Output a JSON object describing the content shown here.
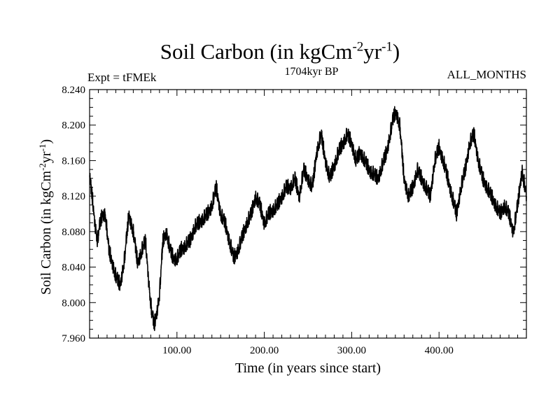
{
  "chart_data": {
    "type": "line",
    "title_main": "Soil Carbon (in kgCm",
    "title_exp1": "-2",
    "title_mid": "yr",
    "title_exp2": "-1",
    "title_end": ")",
    "left_label": "Expt = tFMEk",
    "center_label": "1704kyr BP",
    "right_label": "ALL_MONTHS",
    "xlabel": "Time (in years since start)",
    "ylabel_main": "Soil Carbon (in kgCm",
    "ylabel_exp1": "-2",
    "ylabel_mid": "yr",
    "ylabel_exp2": "-1",
    "ylabel_end": ")",
    "xlim": [
      0,
      500
    ],
    "ylim": [
      7.96,
      8.24
    ],
    "x_ticks": [
      100,
      200,
      300,
      400
    ],
    "x_tick_labels": [
      "100.00",
      "200.00",
      "300.00",
      "400.00"
    ],
    "y_ticks": [
      7.96,
      8.0,
      8.04,
      8.08,
      8.12,
      8.16,
      8.2,
      8.24
    ],
    "y_tick_labels": [
      "7.960",
      "8.000",
      "8.040",
      "8.080",
      "8.120",
      "8.160",
      "8.200",
      "8.240"
    ],
    "series": [
      {
        "name": "Soil Carbon",
        "color": "#000000",
        "x": [
          0,
          3,
          6,
          9,
          12,
          15,
          18,
          22,
          26,
          30,
          35,
          40,
          45,
          50,
          55,
          60,
          64,
          68,
          71,
          74,
          77,
          80,
          84,
          88,
          92,
          96,
          100,
          105,
          110,
          115,
          120,
          125,
          130,
          135,
          140,
          145,
          150,
          155,
          160,
          165,
          170,
          175,
          180,
          185,
          190,
          195,
          200,
          205,
          210,
          215,
          220,
          225,
          230,
          235,
          240,
          245,
          250,
          255,
          260,
          265,
          270,
          275,
          280,
          285,
          290,
          295,
          300,
          305,
          310,
          315,
          320,
          325,
          330,
          335,
          340,
          345,
          348,
          351,
          355,
          360,
          365,
          370,
          375,
          380,
          385,
          390,
          395,
          400,
          405,
          410,
          415,
          420,
          425,
          430,
          435,
          440,
          445,
          450,
          455,
          460,
          465,
          470,
          475,
          480,
          485,
          490,
          495,
          500
        ],
        "values": [
          8.14,
          8.12,
          8.09,
          8.07,
          8.09,
          8.1,
          8.1,
          8.06,
          8.045,
          8.03,
          8.02,
          8.05,
          8.1,
          8.08,
          8.045,
          8.06,
          8.07,
          8.02,
          7.99,
          7.975,
          7.99,
          8.01,
          8.07,
          8.08,
          8.06,
          8.05,
          8.05,
          8.06,
          8.065,
          8.07,
          8.085,
          8.09,
          8.095,
          8.1,
          8.11,
          8.13,
          8.1,
          8.09,
          8.07,
          8.05,
          8.06,
          8.075,
          8.09,
          8.1,
          8.12,
          8.11,
          8.09,
          8.1,
          8.105,
          8.11,
          8.12,
          8.13,
          8.13,
          8.14,
          8.12,
          8.15,
          8.14,
          8.13,
          8.17,
          8.19,
          8.16,
          8.14,
          8.155,
          8.17,
          8.18,
          8.19,
          8.18,
          8.16,
          8.17,
          8.16,
          8.15,
          8.145,
          8.14,
          8.155,
          8.17,
          8.195,
          8.21,
          8.215,
          8.2,
          8.14,
          8.12,
          8.13,
          8.15,
          8.14,
          8.13,
          8.12,
          8.16,
          8.175,
          8.16,
          8.14,
          8.12,
          8.1,
          8.13,
          8.15,
          8.18,
          8.19,
          8.16,
          8.14,
          8.13,
          8.12,
          8.11,
          8.1,
          8.11,
          8.1,
          8.08,
          8.11,
          8.15,
          8.12
        ]
      }
    ]
  }
}
